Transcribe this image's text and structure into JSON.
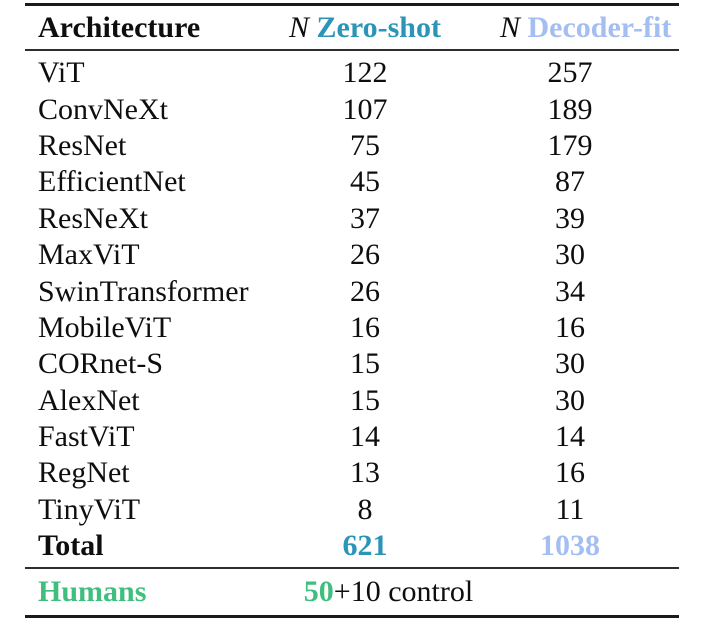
{
  "colors": {
    "text": "#0e0e0e",
    "rule": "#1b1b1b",
    "zero_shot_accent": "#2b95b7",
    "decoder_fit_accent": "#a4bef2",
    "humans_accent": "#3fbe7e"
  },
  "table": {
    "header": {
      "architecture": "Architecture",
      "n_symbol": "N",
      "zero_shot": "Zero-shot",
      "decoder_fit": "Decoder-fit"
    },
    "rows": [
      {
        "architecture": "ViT",
        "zero_shot": "122",
        "decoder_fit": "257"
      },
      {
        "architecture": "ConvNeXt",
        "zero_shot": "107",
        "decoder_fit": "189"
      },
      {
        "architecture": "ResNet",
        "zero_shot": "75",
        "decoder_fit": "179"
      },
      {
        "architecture": "EfficientNet",
        "zero_shot": "45",
        "decoder_fit": "87"
      },
      {
        "architecture": "ResNeXt",
        "zero_shot": "37",
        "decoder_fit": "39"
      },
      {
        "architecture": "MaxViT",
        "zero_shot": "26",
        "decoder_fit": "30"
      },
      {
        "architecture": "SwinTransformer",
        "zero_shot": "26",
        "decoder_fit": "34"
      },
      {
        "architecture": "MobileViT",
        "zero_shot": "16",
        "decoder_fit": "16"
      },
      {
        "architecture": "CORnet-S",
        "zero_shot": "15",
        "decoder_fit": "30"
      },
      {
        "architecture": "AlexNet",
        "zero_shot": "15",
        "decoder_fit": "30"
      },
      {
        "architecture": "FastViT",
        "zero_shot": "14",
        "decoder_fit": "14"
      },
      {
        "architecture": "RegNet",
        "zero_shot": "13",
        "decoder_fit": "16"
      },
      {
        "architecture": "TinyViT",
        "zero_shot": "8",
        "decoder_fit": "11"
      }
    ],
    "total": {
      "label": "Total",
      "zero_shot": "621",
      "decoder_fit": "1038"
    },
    "humans": {
      "label": "Humans",
      "count": "50",
      "suffix": "+10 control"
    }
  }
}
